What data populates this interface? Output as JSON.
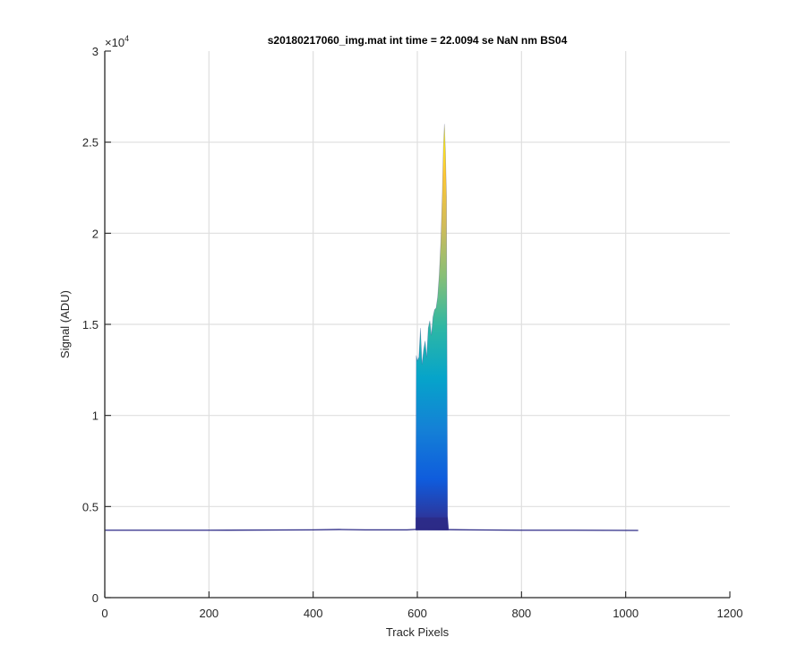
{
  "chart_data": {
    "type": "area",
    "title": "s20180217060_img.mat int time = 22.0094 se  NaN nm BS04",
    "xlabel": "Track Pixels",
    "ylabel": "Signal (ADU)",
    "xlim": [
      0,
      1200
    ],
    "ylim": [
      0,
      30000
    ],
    "x_ticks": [
      0,
      200,
      400,
      600,
      800,
      1000,
      1200
    ],
    "x_tick_labels": [
      "0",
      "200",
      "400",
      "600",
      "800",
      "1000",
      "1200"
    ],
    "y_ticks": [
      0,
      5000,
      10000,
      15000,
      20000,
      25000,
      30000
    ],
    "y_tick_labels": [
      "0",
      "0.5",
      "1",
      "1.5",
      "2",
      "2.5",
      "3"
    ],
    "y_exponent_label": "×10",
    "y_exponent_power": "4",
    "grid": true,
    "colormap": "parula",
    "colormap_stops": [
      "#352a87",
      "#0f5cdd",
      "#1481d6",
      "#06a4ca",
      "#2eb7a4",
      "#87bf77",
      "#d1bb59",
      "#fec832",
      "#f9fb0e"
    ],
    "baseline_color": "#2c2a86",
    "baseline": {
      "x": [
        1,
        200,
        400,
        450,
        500,
        580,
        600,
        700,
        800,
        900,
        1024
      ],
      "y": [
        3700,
        3700,
        3720,
        3740,
        3720,
        3720,
        3750,
        3720,
        3700,
        3700,
        3690
      ]
    },
    "peak_envelope": {
      "x": [
        597,
        598,
        600,
        603,
        606,
        609,
        612,
        615,
        618,
        621,
        624,
        627,
        630,
        633,
        636,
        639,
        642,
        645,
        648,
        650,
        652,
        654,
        656,
        658,
        660
      ],
      "y": [
        4000,
        13300,
        13000,
        13200,
        14800,
        12800,
        13600,
        14100,
        13200,
        14800,
        15200,
        14400,
        15400,
        15800,
        15900,
        16500,
        17700,
        19500,
        22200,
        24700,
        26000,
        24500,
        22000,
        4500,
        3800
      ]
    }
  }
}
